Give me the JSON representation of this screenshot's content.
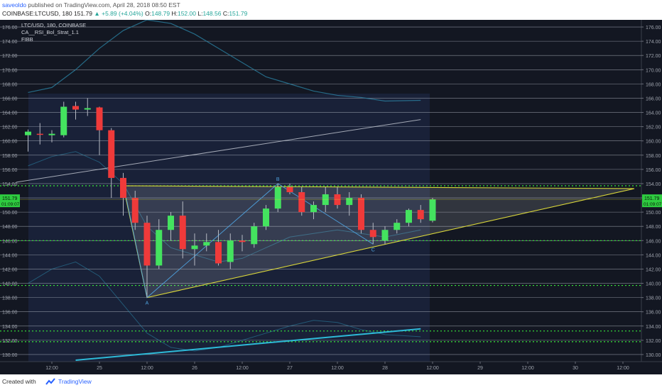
{
  "header": {
    "author": "saveoldo",
    "published": " published on TradingView.com, April 28, 2018 08:50 EST",
    "symbol": "COINBASE:LTCUSD, 180",
    "last": "151.79",
    "change": "+5.89 (+4.04%)",
    "o_label": "O:",
    "o": "148.79",
    "h_label": "H:",
    "h": "152.00",
    "l_label": "L:",
    "l": "148.56",
    "c_label": "C:",
    "c": "151.79"
  },
  "legend": {
    "line1": "LTC/USD, 180, COINBASE",
    "line2": "CA__RSI_Bol_Strat_1.1",
    "line3": "FIBB"
  },
  "footer": {
    "created": "Created with",
    "brand": "TradingView"
  },
  "colors": {
    "background": "#131722",
    "up": "#44e35f",
    "down": "#ef3a3a",
    "fib_dotted": "#38e83a",
    "triangle": "#d9d63a",
    "pattern": "#4fa3e0",
    "price_label": "#2ecc40",
    "trendline": "#2ebad8"
  },
  "chart_data": {
    "type": "candlestick",
    "y_ticks": [
      "176.00",
      "174.00",
      "172.00",
      "170.00",
      "168.00",
      "166.00",
      "164.00",
      "162.00",
      "160.00",
      "158.00",
      "156.00",
      "154.00",
      "152.00",
      "150.00",
      "148.00",
      "146.00",
      "144.00",
      "142.00",
      "140.00",
      "138.00",
      "136.00",
      "134.00",
      "132.00",
      "130.00"
    ],
    "ylim": [
      129,
      177
    ],
    "x_ticks": [
      {
        "label": "12:00",
        "i": 0
      },
      {
        "label": "25",
        "i": 4
      },
      {
        "label": "12:00",
        "i": 8
      },
      {
        "label": "26",
        "i": 12
      },
      {
        "label": "12:00",
        "i": 16
      },
      {
        "label": "27",
        "i": 20
      },
      {
        "label": "12:00",
        "i": 24
      },
      {
        "label": "28",
        "i": 28
      },
      {
        "label": "12:00",
        "i": 32
      },
      {
        "label": "29",
        "i": 36
      },
      {
        "label": "12:00",
        "i": 40
      },
      {
        "label": "30",
        "i": 44
      },
      {
        "label": "12:00",
        "i": 48
      }
    ],
    "candles": [
      {
        "i": -2,
        "o": 160.8,
        "h": 161.6,
        "l": 158.5,
        "c": 161.3
      },
      {
        "i": -1,
        "o": 161.0,
        "h": 162.5,
        "l": 159.5,
        "c": 160.9
      },
      {
        "i": 0,
        "o": 160.8,
        "h": 161.5,
        "l": 159.8,
        "c": 161.0
      },
      {
        "i": 1,
        "o": 160.8,
        "h": 165.5,
        "l": 160.5,
        "c": 164.8
      },
      {
        "i": 2,
        "o": 164.9,
        "h": 165.5,
        "l": 163.0,
        "c": 164.4
      },
      {
        "i": 3,
        "o": 164.4,
        "h": 166.0,
        "l": 163.5,
        "c": 164.6
      },
      {
        "i": 4,
        "o": 164.7,
        "h": 164.8,
        "l": 158.0,
        "c": 161.5
      },
      {
        "i": 5,
        "o": 161.5,
        "h": 161.8,
        "l": 152.0,
        "c": 154.8
      },
      {
        "i": 6,
        "o": 154.8,
        "h": 155.5,
        "l": 149.5,
        "c": 152.0
      },
      {
        "i": 7,
        "o": 152.0,
        "h": 153.0,
        "l": 147.5,
        "c": 148.5
      },
      {
        "i": 8,
        "o": 148.5,
        "h": 149.5,
        "l": 138.0,
        "c": 142.5
      },
      {
        "i": 9,
        "o": 142.5,
        "h": 149.0,
        "l": 142.0,
        "c": 147.5
      },
      {
        "i": 10,
        "o": 147.5,
        "h": 150.0,
        "l": 146.0,
        "c": 149.5
      },
      {
        "i": 11,
        "o": 149.5,
        "h": 151.5,
        "l": 143.5,
        "c": 144.8
      },
      {
        "i": 12,
        "o": 144.8,
        "h": 147.0,
        "l": 142.5,
        "c": 145.3
      },
      {
        "i": 13,
        "o": 145.3,
        "h": 147.0,
        "l": 144.5,
        "c": 145.8
      },
      {
        "i": 14,
        "o": 145.8,
        "h": 147.5,
        "l": 142.5,
        "c": 142.8
      },
      {
        "i": 15,
        "o": 143.0,
        "h": 147.0,
        "l": 142.0,
        "c": 146.0
      },
      {
        "i": 16,
        "o": 146.0,
        "h": 146.8,
        "l": 144.5,
        "c": 145.8
      },
      {
        "i": 17,
        "o": 145.5,
        "h": 148.5,
        "l": 145.0,
        "c": 148.0
      },
      {
        "i": 18,
        "o": 148.0,
        "h": 151.0,
        "l": 147.5,
        "c": 150.5
      },
      {
        "i": 19,
        "o": 150.5,
        "h": 154.0,
        "l": 150.0,
        "c": 153.5
      },
      {
        "i": 20,
        "o": 153.5,
        "h": 154.0,
        "l": 152.5,
        "c": 152.8
      },
      {
        "i": 21,
        "o": 152.8,
        "h": 153.5,
        "l": 149.5,
        "c": 150.0
      },
      {
        "i": 22,
        "o": 150.0,
        "h": 151.5,
        "l": 149.0,
        "c": 151.0
      },
      {
        "i": 23,
        "o": 151.0,
        "h": 153.5,
        "l": 150.0,
        "c": 152.5
      },
      {
        "i": 24,
        "o": 152.5,
        "h": 153.5,
        "l": 150.5,
        "c": 151.0
      },
      {
        "i": 25,
        "o": 151.0,
        "h": 152.8,
        "l": 149.5,
        "c": 152.0
      },
      {
        "i": 26,
        "o": 152.0,
        "h": 152.5,
        "l": 147.0,
        "c": 147.5
      },
      {
        "i": 27,
        "o": 147.5,
        "h": 148.5,
        "l": 145.5,
        "c": 146.5
      },
      {
        "i": 28,
        "o": 146.0,
        "h": 148.0,
        "l": 145.5,
        "c": 147.5
      },
      {
        "i": 29,
        "o": 147.5,
        "h": 149.0,
        "l": 147.0,
        "c": 148.5
      },
      {
        "i": 30,
        "o": 148.5,
        "h": 150.5,
        "l": 148.0,
        "c": 150.3
      },
      {
        "i": 31,
        "o": 150.3,
        "h": 151.0,
        "l": 148.5,
        "c": 149.0
      },
      {
        "i": 32,
        "o": 148.79,
        "h": 152.0,
        "l": 148.56,
        "c": 151.79
      }
    ],
    "fib_levels_dotted": [
      153.7,
      146.0,
      139.7,
      133.3,
      131.8
    ],
    "pattern_points": [
      {
        "label": "A",
        "i": 8,
        "v": 138.0
      },
      {
        "label": "B",
        "i": 19,
        "v": 154.0
      },
      {
        "label": "C",
        "i": 27,
        "v": 145.5
      }
    ],
    "price_label": {
      "value": "151.79",
      "countdown": "01:09:07"
    }
  }
}
